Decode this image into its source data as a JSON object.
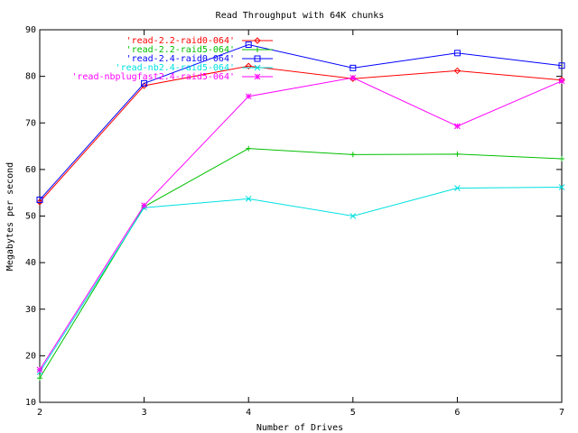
{
  "chart_data": {
    "type": "line",
    "title": "Read Throughput with 64K chunks",
    "xlabel": "Number of Drives",
    "ylabel": "Megabytes per second",
    "xlim": [
      2,
      7
    ],
    "ylim": [
      10,
      90
    ],
    "x_ticks": [
      2,
      3,
      4,
      5,
      6,
      7
    ],
    "y_ticks": [
      10,
      20,
      30,
      40,
      50,
      60,
      70,
      80,
      90
    ],
    "x_tick_labels": [
      "2",
      "3",
      "4",
      "5",
      "6",
      "7"
    ],
    "y_tick_labels": [
      "10",
      "20",
      "30",
      "40",
      "50",
      "60",
      "70",
      "80",
      "90"
    ],
    "grid": false,
    "legend_position": "top",
    "x": [
      2,
      3,
      4,
      5,
      6,
      7
    ],
    "series": [
      {
        "name": "'read-2.2-raid0-064'",
        "color": "#ff0000",
        "marker": "diamond",
        "values": [
          53.0,
          78.0,
          82.2,
          79.5,
          81.2,
          79.2
        ]
      },
      {
        "name": "'read-2.2-raid5-064'",
        "color": "#00c000",
        "marker": "plus",
        "values": [
          15.2,
          52.0,
          64.5,
          63.2,
          63.3,
          62.3
        ]
      },
      {
        "name": "'read-2.4-raid0-064'",
        "color": "#0000ff",
        "marker": "square",
        "values": [
          53.5,
          78.5,
          86.8,
          81.8,
          85.0,
          82.3
        ]
      },
      {
        "name": "'read-nb2.4-raid5-064'",
        "color": "#00e0e0",
        "marker": "cross",
        "values": [
          16.5,
          51.8,
          53.7,
          50.0,
          56.0,
          56.2
        ]
      },
      {
        "name": "'read-nbplugfast2.4-raid5-064'",
        "color": "#ff00ff",
        "marker": "star",
        "values": [
          17.0,
          52.3,
          75.7,
          79.7,
          69.3,
          79.0
        ]
      }
    ]
  }
}
